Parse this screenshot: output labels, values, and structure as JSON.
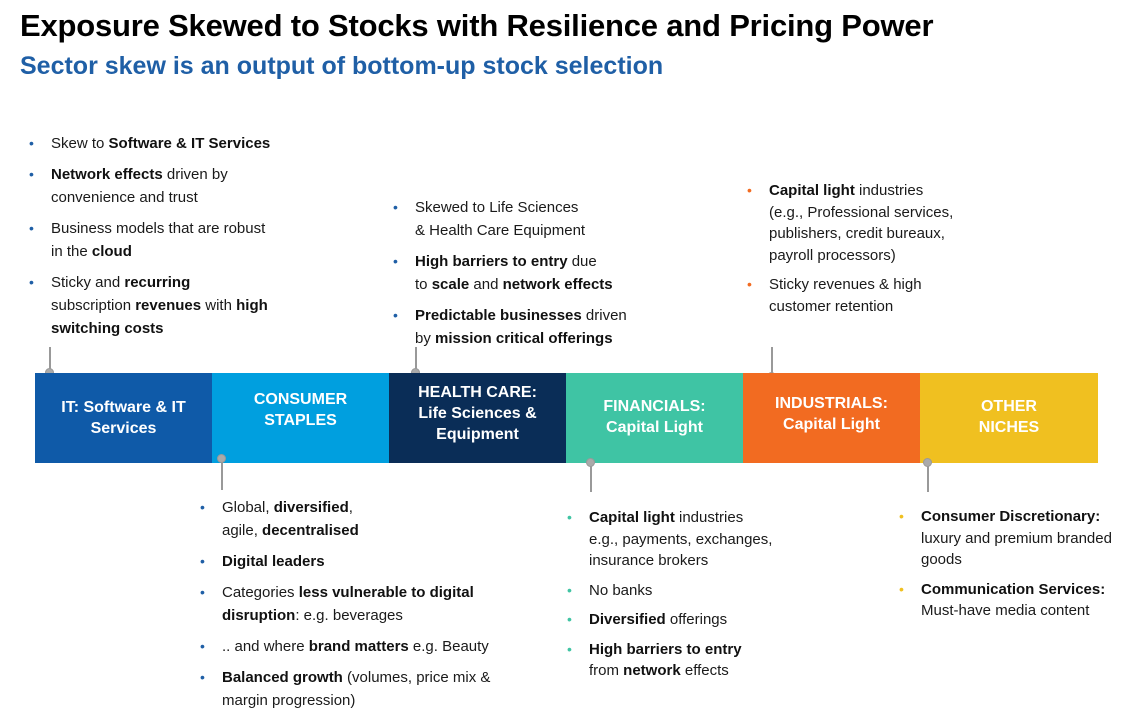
{
  "title": "Exposure Skewed to Stocks with Resilience and Pricing Power",
  "subtitle": "Sector skew is an output of bottom-up stock selection",
  "colors": {
    "it": "#0f5aa8",
    "consumer_staples": "#009fdf",
    "health_care": "#0a2d57",
    "financials": "#3fc4a4",
    "industrials": "#f26b21",
    "other": "#f0c020"
  },
  "segments": {
    "it": {
      "line1": "IT: Software & IT",
      "line2": "Services"
    },
    "consumer_staples": {
      "line1": "CONSUMER",
      "line2": "STAPLES"
    },
    "health_care": {
      "line1": "HEALTH CARE:",
      "line2": "Life Sciences &",
      "line3": "Equipment"
    },
    "financials": {
      "line1": "FINANCIALS:",
      "line2": "Capital Light"
    },
    "industrials": {
      "line1": "INDUSTRIALS:",
      "line2": "Capital Light"
    },
    "other": {
      "line1": "OTHER",
      "line2": "NICHES"
    }
  },
  "it_notes": {
    "b1": {
      "t1": "Skew to ",
      "t2": "Software & IT Services"
    },
    "b2": {
      "t1": "Network effects",
      "t2": " driven by",
      "t3": "convenience and trust"
    },
    "b3": {
      "t1": "Business models that are robust",
      "t2": "in the ",
      "t3": "cloud"
    },
    "b4": {
      "t1": "Sticky and ",
      "t2": "recurring",
      "t3": "subscription ",
      "t4": "revenues",
      "t5": " with ",
      "t6": "high",
      "t7": "switching costs"
    }
  },
  "health_notes": {
    "b1": {
      "t1": "Skewed to Life Sciences",
      "t2": "& Health Care Equipment"
    },
    "b2": {
      "t1": "High barriers to entry",
      "t2": " due",
      "t3": "to ",
      "t4": "scale",
      "t5": " and ",
      "t6": "network effects"
    },
    "b3": {
      "t1": "Predictable businesses",
      "t2": " driven",
      "t3": "by ",
      "t4": "mission critical offerings"
    }
  },
  "industrials_notes": {
    "b1": {
      "t1": "Capital light",
      "t2": " industries",
      "t3": "(e.g., Professional services,",
      "t4": "publishers, credit bureaux,",
      "t5": "payroll processors)"
    },
    "b2": {
      "t1": "Sticky revenues & high",
      "t2": "customer retention"
    }
  },
  "staples_notes": {
    "b1": {
      "t1": "Global, ",
      "t2": "diversified",
      "t3": ",",
      "t4": "agile, ",
      "t5": "decentralised"
    },
    "b2": {
      "t1": "Digital leaders"
    },
    "b3": {
      "t1": "Categories ",
      "t2": "less vulnerable to digital",
      "t3": "disruption",
      "t4": ": e.g. beverages"
    },
    "b4": {
      "t1": ".. and where ",
      "t2": "brand matters",
      "t3": " e.g. Beauty"
    },
    "b5": {
      "t1": "Balanced growth",
      "t2": " (volumes, price mix &",
      "t3": "margin progression)"
    }
  },
  "financials_notes": {
    "b1": {
      "t1": "Capital light",
      "t2": " industries",
      "t3": "e.g., payments, exchanges,",
      "t4": "insurance brokers"
    },
    "b2": {
      "t1": "No banks"
    },
    "b3": {
      "t1": "Diversified",
      "t2": " offerings"
    },
    "b4": {
      "t1": "High barriers to entry",
      "t2": "from ",
      "t3": "network",
      "t4": " effects"
    }
  },
  "other_notes": {
    "b1": {
      "t1": "Consumer Discretionary:",
      "t2": "luxury and premium branded",
      "t3": "goods"
    },
    "b2": {
      "t1": "Communication Services:",
      "t2": "Must-have media content"
    }
  }
}
